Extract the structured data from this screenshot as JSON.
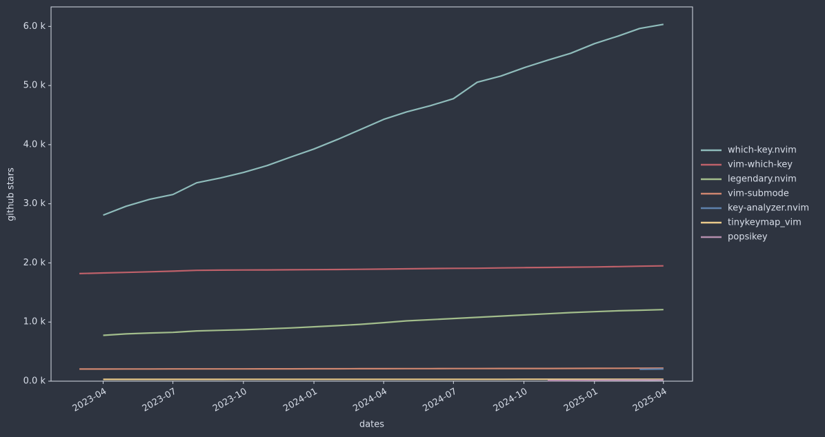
{
  "chart_data": {
    "type": "line",
    "xlabel": "dates",
    "ylabel": "github stars",
    "x": [
      "2023-03",
      "2023-04",
      "2023-05",
      "2023-06",
      "2023-07",
      "2023-08",
      "2023-09",
      "2023-10",
      "2023-11",
      "2023-12",
      "2024-01",
      "2024-02",
      "2024-03",
      "2024-04",
      "2024-05",
      "2024-06",
      "2024-07",
      "2024-08",
      "2024-09",
      "2024-10",
      "2024-11",
      "2024-12",
      "2025-01",
      "2025-02",
      "2025-03",
      "2025-04"
    ],
    "xlim": [
      "2023-01-23",
      "2025-05-09"
    ],
    "xticks": [
      "2023-04",
      "2023-07",
      "2023-10",
      "2024-01",
      "2024-04",
      "2024-07",
      "2024-10",
      "2025-01",
      "2025-04"
    ],
    "ylim": [
      0,
      6330
    ],
    "yticks": [
      {
        "value": 0,
        "label": "0.0 k"
      },
      {
        "value": 1000,
        "label": "1.0 k"
      },
      {
        "value": 2000,
        "label": "2.0 k"
      },
      {
        "value": 3000,
        "label": "3.0 k"
      },
      {
        "value": 4000,
        "label": "4.0 k"
      },
      {
        "value": 5000,
        "label": "5.0 k"
      },
      {
        "value": 6000,
        "label": "6.0 k"
      }
    ],
    "grid": false,
    "legend": "right",
    "series": [
      {
        "name": "which-key.nvim",
        "color": "#8fbcbb",
        "values": [
          null,
          2808,
          2959,
          3076,
          3157,
          3355,
          3437,
          3530,
          3647,
          3787,
          3926,
          4089,
          4253,
          4427,
          4555,
          4660,
          4777,
          5056,
          5161,
          5301,
          5429,
          5546,
          5709,
          5837,
          5965,
          6035
        ]
      },
      {
        "name": "vim-which-key",
        "color": "#bf616a",
        "values": [
          1820,
          1830,
          1840,
          1850,
          1860,
          1875,
          1878,
          1880,
          1882,
          1884,
          1886,
          1888,
          1892,
          1896,
          1900,
          1905,
          1908,
          1910,
          1915,
          1920,
          1924,
          1928,
          1932,
          1938,
          1944,
          1950
        ]
      },
      {
        "name": "legendary.nvim",
        "color": "#a3be8c",
        "values": [
          null,
          775,
          800,
          815,
          825,
          850,
          860,
          870,
          885,
          900,
          920,
          940,
          960,
          990,
          1020,
          1040,
          1060,
          1080,
          1100,
          1120,
          1140,
          1160,
          1175,
          1190,
          1200,
          1210
        ]
      },
      {
        "name": "vim-submode",
        "color": "#d08770",
        "values": [
          205,
          205,
          206,
          206,
          207,
          207,
          208,
          208,
          209,
          209,
          210,
          210,
          211,
          211,
          212,
          212,
          213,
          213,
          214,
          215,
          215,
          216,
          217,
          218,
          219,
          220
        ]
      },
      {
        "name": "key-analyzer.nvim",
        "color": "#5e81ac",
        "values": [
          null,
          null,
          null,
          null,
          null,
          null,
          null,
          null,
          null,
          null,
          null,
          null,
          null,
          null,
          null,
          null,
          null,
          null,
          null,
          null,
          null,
          null,
          null,
          null,
          200,
          205
        ]
      },
      {
        "name": "tinykeymap_vim",
        "color": "#ebcb8b",
        "values": [
          null,
          30,
          30,
          30,
          30,
          30,
          30,
          31,
          31,
          31,
          31,
          31,
          31,
          32,
          32,
          32,
          32,
          32,
          32,
          33,
          33,
          33,
          33,
          33,
          33,
          33
        ]
      },
      {
        "name": "popsikey",
        "color": "#b48ead",
        "values": [
          null,
          null,
          null,
          null,
          null,
          null,
          null,
          null,
          null,
          null,
          null,
          null,
          null,
          null,
          null,
          null,
          null,
          null,
          null,
          null,
          10,
          12,
          14,
          16,
          18,
          20
        ]
      }
    ]
  }
}
